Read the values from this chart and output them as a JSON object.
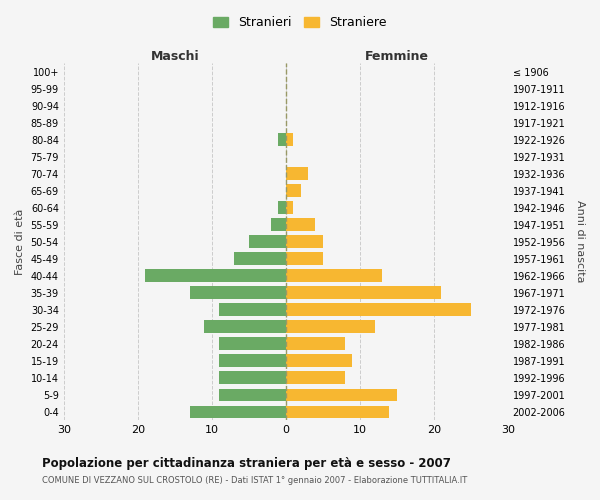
{
  "age_groups": [
    "100+",
    "95-99",
    "90-94",
    "85-89",
    "80-84",
    "75-79",
    "70-74",
    "65-69",
    "60-64",
    "55-59",
    "50-54",
    "45-49",
    "40-44",
    "35-39",
    "30-34",
    "25-29",
    "20-24",
    "15-19",
    "10-14",
    "5-9",
    "0-4"
  ],
  "birth_years": [
    "≤ 1906",
    "1907-1911",
    "1912-1916",
    "1917-1921",
    "1922-1926",
    "1927-1931",
    "1932-1936",
    "1937-1941",
    "1942-1946",
    "1947-1951",
    "1952-1956",
    "1957-1961",
    "1962-1966",
    "1967-1971",
    "1972-1976",
    "1977-1981",
    "1982-1986",
    "1987-1991",
    "1992-1996",
    "1997-2001",
    "2002-2006"
  ],
  "maschi": [
    0,
    0,
    0,
    0,
    1,
    0,
    0,
    0,
    1,
    2,
    5,
    7,
    19,
    13,
    9,
    11,
    9,
    9,
    9,
    9,
    13
  ],
  "femmine": [
    0,
    0,
    0,
    0,
    1,
    0,
    3,
    2,
    1,
    4,
    5,
    5,
    13,
    21,
    25,
    12,
    8,
    9,
    8,
    15,
    14
  ],
  "color_maschi": "#6aaa64",
  "color_femmine": "#f7b731",
  "title": "Popolazione per cittadinanza straniera per età e sesso - 2007",
  "subtitle": "COMUNE DI VEZZANO SUL CROSTOLO (RE) - Dati ISTAT 1° gennaio 2007 - Elaborazione TUTTITALIA.IT",
  "xlabel_left": "Maschi",
  "xlabel_right": "Femmine",
  "ylabel_left": "Fasce di età",
  "ylabel_right": "Anni di nascita",
  "legend_maschi": "Stranieri",
  "legend_femmine": "Straniere",
  "xlim": 30,
  "background_color": "#f5f5f5",
  "grid_color": "#cccccc"
}
